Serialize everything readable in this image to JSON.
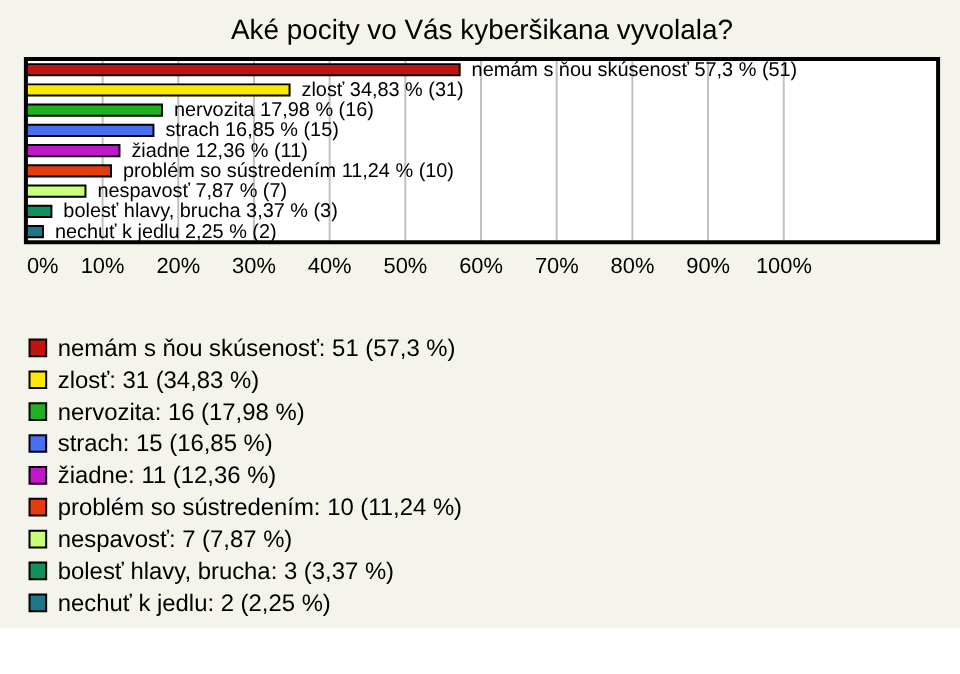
{
  "chart_data": {
    "type": "bar",
    "orientation": "horizontal",
    "title": "Aké pocity vo Vás kyberšikana vyvolala?",
    "categories": [
      null,
      null,
      null,
      null,
      null,
      null,
      null,
      null,
      null
    ],
    "series": [
      {
        "name": "nemám s ňou skúsenosť: 51 (57,3 %)",
        "color": "#c0140c",
        "values": [
          57.3,
          null,
          null,
          null,
          null,
          null,
          null,
          null,
          null
        ],
        "value_labels": [
          "nemám s ňou skúsenosť 57,3 % (51)",
          null,
          null,
          null,
          null,
          null,
          null,
          null,
          null
        ]
      },
      {
        "name": "zlosť: 31 (34,83 %)",
        "color": "#ffe800",
        "values": [
          null,
          34.83,
          null,
          null,
          null,
          null,
          null,
          null,
          null
        ],
        "value_labels": [
          null,
          "zlosť 34,83 % (31)",
          null,
          null,
          null,
          null,
          null,
          null,
          null
        ]
      },
      {
        "name": "nervozita: 16 (17,98 %)",
        "color": "#20b020",
        "values": [
          null,
          null,
          17.98,
          null,
          null,
          null,
          null,
          null,
          null
        ],
        "value_labels": [
          null,
          null,
          "nervozita 17,98 % (16)",
          null,
          null,
          null,
          null,
          null,
          null
        ]
      },
      {
        "name": "strach: 15 (16,85 %)",
        "color": "#4a6ef0",
        "values": [
          null,
          null,
          null,
          16.85,
          null,
          null,
          null,
          null,
          null
        ],
        "value_labels": [
          null,
          null,
          null,
          "strach 16,85 % (15)",
          null,
          null,
          null,
          null,
          null
        ]
      },
      {
        "name": "žiadne: 11 (12,36 %)",
        "color": "#c018c8",
        "values": [
          null,
          null,
          null,
          null,
          12.36,
          null,
          null,
          null,
          null
        ],
        "value_labels": [
          null,
          null,
          null,
          null,
          "žiadne 12,36 % (11)",
          null,
          null,
          null,
          null
        ]
      },
      {
        "name": "problém so sústredením: 10 (11,24 %)",
        "color": "#e43c0c",
        "values": [
          null,
          null,
          null,
          null,
          null,
          11.24,
          null,
          null,
          null
        ],
        "value_labels": [
          null,
          null,
          null,
          null,
          null,
          "problém so sústredením 11,24 % (10)",
          null,
          null,
          null
        ]
      },
      {
        "name": "nespavosť: 7 (7,87 %)",
        "color": "#c8ff78",
        "values": [
          null,
          null,
          null,
          null,
          null,
          null,
          7.87,
          null,
          null
        ],
        "value_labels": [
          null,
          null,
          null,
          null,
          null,
          null,
          "nespavosť 7,87 % (7)",
          null,
          null
        ]
      },
      {
        "name": "bolesť hlavy, brucha: 3 (3,37 %)",
        "color": "#10905c",
        "values": [
          null,
          null,
          null,
          null,
          null,
          null,
          null,
          3.37,
          null
        ],
        "value_labels": [
          null,
          null,
          null,
          null,
          null,
          null,
          null,
          "bolesť hlavy, brucha 3,37 % (3)",
          null
        ]
      },
      {
        "name": "nechuť k jedlu: 2 (2,25 %)",
        "color": "#1c7888",
        "values": [
          null,
          null,
          null,
          null,
          null,
          null,
          null,
          null,
          2.25
        ],
        "value_labels": [
          null,
          null,
          null,
          null,
          null,
          null,
          null,
          null,
          "nechuť k jedlu 2,25 % (2)"
        ]
      }
    ],
    "xlim": [
      0,
      120.5
    ],
    "xticks": [
      {
        "value": 0,
        "label": "0%"
      },
      {
        "value": 10,
        "label": "10%"
      },
      {
        "value": 20,
        "label": "20%"
      },
      {
        "value": 30,
        "label": "30%"
      },
      {
        "value": 40,
        "label": "40%"
      },
      {
        "value": 50,
        "label": "50%"
      },
      {
        "value": 60,
        "label": "60%"
      },
      {
        "value": 70,
        "label": "70%"
      },
      {
        "value": 80,
        "label": "80%"
      },
      {
        "value": 90,
        "label": "90%"
      },
      {
        "value": 100,
        "label": "100%"
      }
    ],
    "grid": "x",
    "legend": "bottom"
  }
}
